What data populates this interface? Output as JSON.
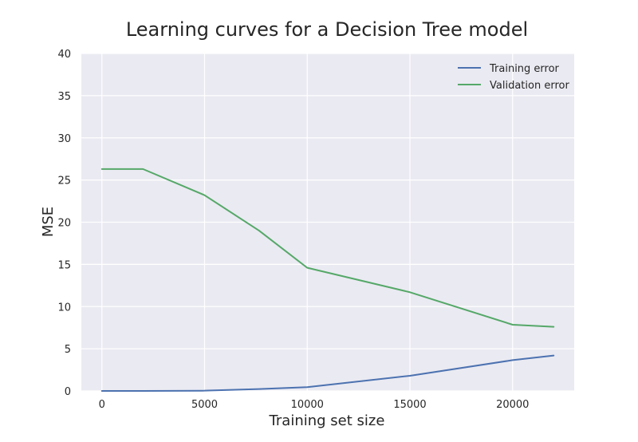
{
  "chart_data": {
    "type": "line",
    "title": "Learning curves for a Decision Tree model",
    "xlabel": "Training set size",
    "ylabel": "MSE",
    "xlim": [
      -1000,
      23000
    ],
    "ylim": [
      0,
      40
    ],
    "xticks": [
      0,
      5000,
      10000,
      15000,
      20000
    ],
    "yticks": [
      0,
      5,
      10,
      15,
      20,
      25,
      30,
      35,
      40
    ],
    "grid": true,
    "legend_position": "top-right",
    "series": [
      {
        "name": "Training error",
        "color": "#4c72b0",
        "x": [
          1,
          2000,
          5000,
          7654,
          10000,
          15000,
          20000,
          22000
        ],
        "y": [
          0.0,
          0.0,
          0.03,
          0.22,
          0.45,
          1.8,
          3.65,
          4.2
        ]
      },
      {
        "name": "Validation error",
        "color": "#55a868",
        "x": [
          1,
          2000,
          5000,
          7654,
          10000,
          15000,
          20000,
          22000
        ],
        "y": [
          26.3,
          26.3,
          23.2,
          19.0,
          14.6,
          11.7,
          7.85,
          7.6
        ]
      }
    ],
    "background_color": "#eaeaf2",
    "grid_color": "#ffffff"
  }
}
